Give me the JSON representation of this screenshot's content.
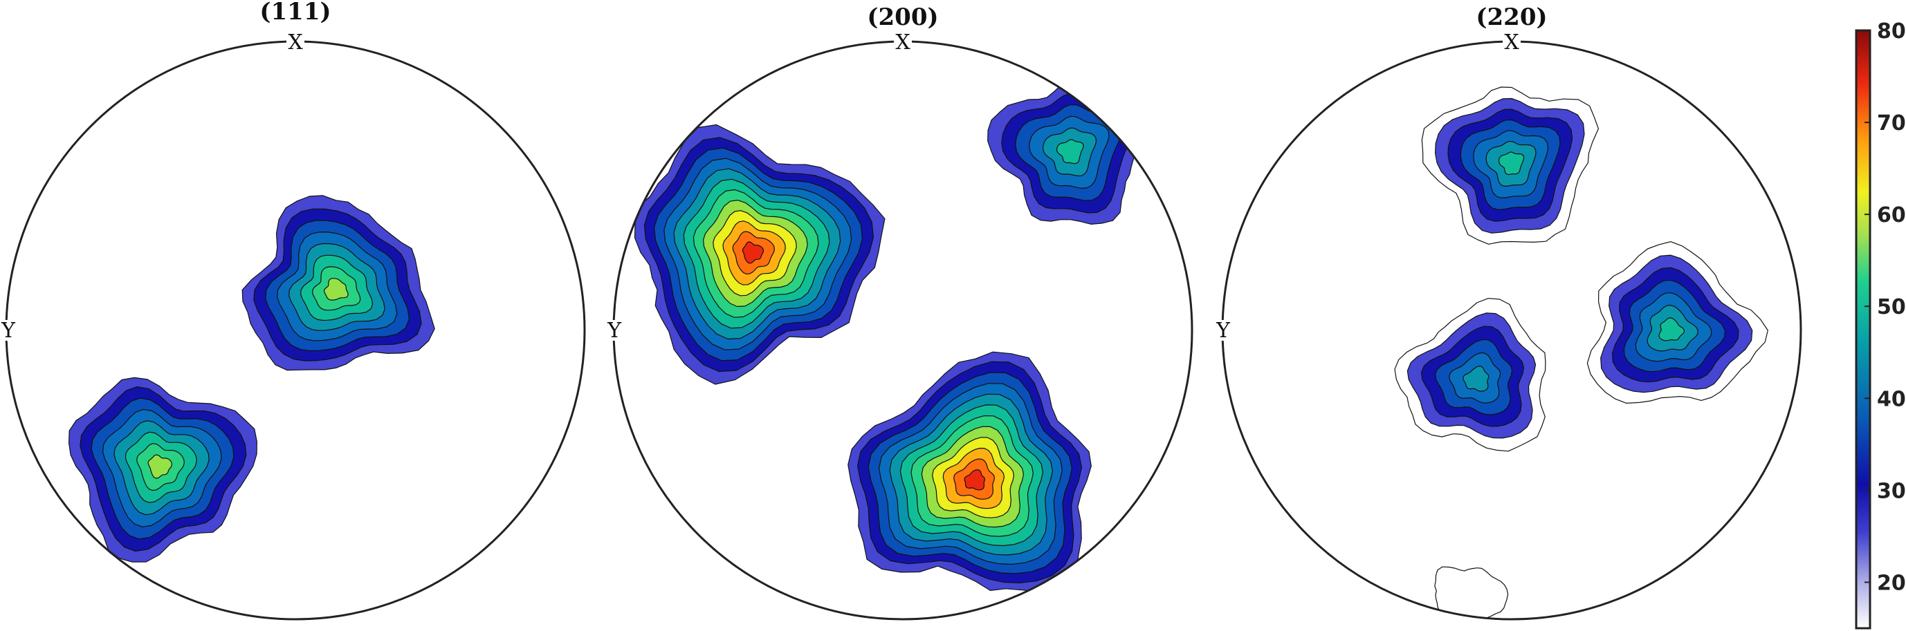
{
  "chart_data": {
    "type": "pole-figure",
    "plots": [
      {
        "title": "(111)",
        "x_label": "X",
        "y_label": "Y",
        "peaks": [
          {
            "id": "center",
            "x": 0.14,
            "y": 0.14,
            "max": 55,
            "levels": [
              20,
              25,
              30,
              35,
              40,
              45,
              50,
              55
            ]
          },
          {
            "id": "lower-left",
            "x": -0.47,
            "y": -0.47,
            "max": 55,
            "levels": [
              20,
              25,
              30,
              35,
              40,
              45,
              50,
              55
            ]
          }
        ]
      },
      {
        "title": "(200)",
        "x_label": "X",
        "y_label": "Y",
        "peaks": [
          {
            "id": "upper-left",
            "x": -0.52,
            "y": 0.27,
            "max": 75,
            "levels": [
              20,
              25,
              30,
              35,
              40,
              45,
              50,
              55,
              60,
              65,
              70,
              75
            ]
          },
          {
            "id": "upper-right",
            "x": 0.58,
            "y": 0.62,
            "max": 45,
            "levels": [
              20,
              25,
              30,
              35,
              40,
              45
            ]
          },
          {
            "id": "lower",
            "x": 0.25,
            "y": -0.52,
            "max": 75,
            "levels": [
              20,
              25,
              30,
              35,
              40,
              45,
              50,
              55,
              60,
              65,
              70,
              75
            ]
          }
        ]
      },
      {
        "title": "(220)",
        "x_label": "X",
        "y_label": "Y",
        "peaks": [
          {
            "id": "top",
            "x": 0.0,
            "y": 0.58,
            "max": 45,
            "levels": [
              15,
              20,
              25,
              30,
              35,
              40,
              45
            ]
          },
          {
            "id": "center",
            "x": -0.12,
            "y": -0.17,
            "max": 40,
            "levels": [
              15,
              20,
              25,
              30,
              35,
              40
            ]
          },
          {
            "id": "right",
            "x": 0.55,
            "y": 0.0,
            "max": 45,
            "levels": [
              15,
              20,
              25,
              30,
              35,
              40,
              45
            ]
          },
          {
            "id": "bottom",
            "x": -0.15,
            "y": -0.93,
            "max": 15,
            "levels": [
              15
            ]
          }
        ]
      }
    ],
    "colorbar": {
      "min": 15,
      "max": 80,
      "ticks": [
        20,
        30,
        40,
        50,
        60,
        70,
        80
      ],
      "colormap": "jet-like"
    }
  }
}
